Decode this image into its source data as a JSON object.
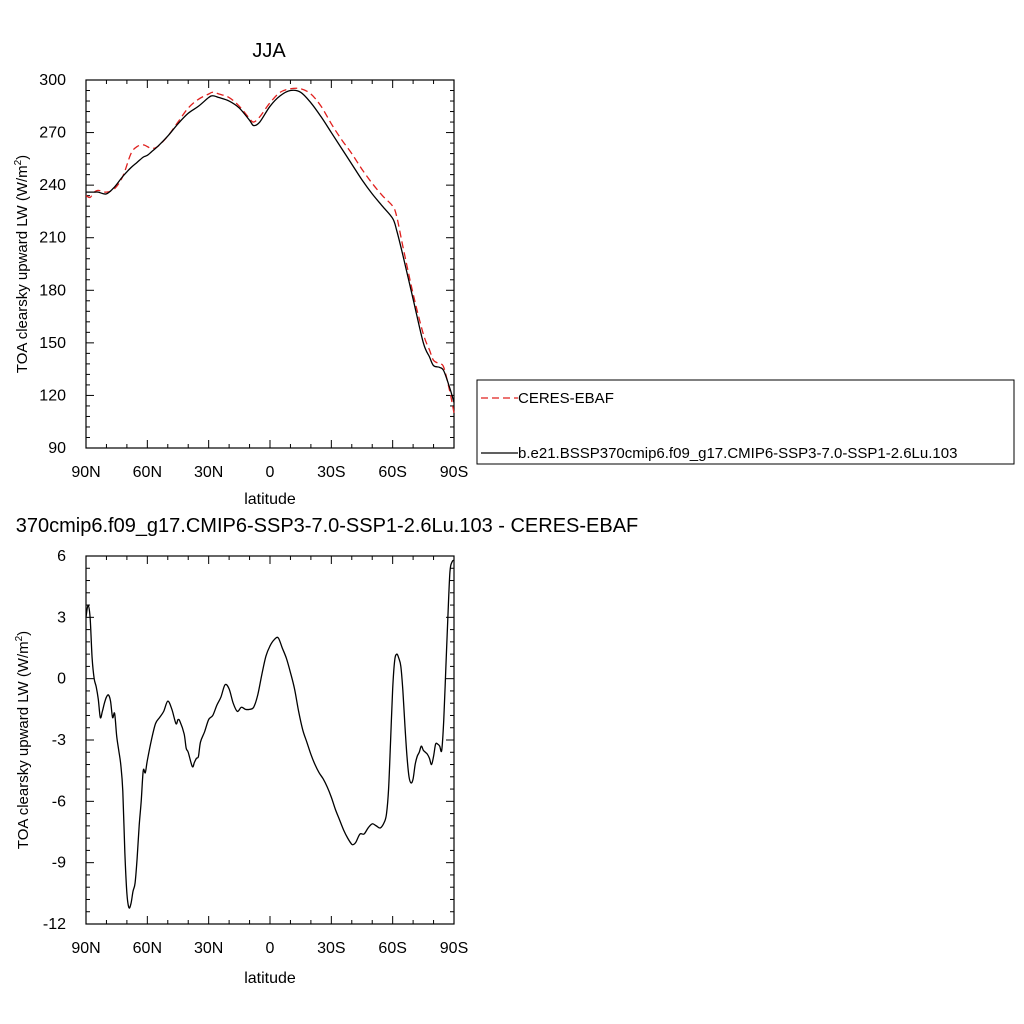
{
  "chart_data": [
    {
      "type": "line",
      "title": "JJA",
      "xlabel": "latitude",
      "ylabel": "TOA clearsky upward LW (W/m",
      "ylabel_sup": "2",
      "ylabel_close": ")",
      "xlim": [
        90,
        -90
      ],
      "ylim": [
        90,
        300
      ],
      "xticks": [
        {
          "v": 90,
          "label": "90N"
        },
        {
          "v": 60,
          "label": "60N"
        },
        {
          "v": 30,
          "label": "30N"
        },
        {
          "v": 0,
          "label": "0"
        },
        {
          "v": -30,
          "label": "30S"
        },
        {
          "v": -60,
          "label": "60S"
        },
        {
          "v": -90,
          "label": "90S"
        }
      ],
      "yticks": [
        90,
        120,
        150,
        180,
        210,
        240,
        270,
        300
      ],
      "legend": {
        "placement": "right"
      },
      "series": [
        {
          "name": "CERES-EBAF",
          "color": "#e0201e",
          "dash": true,
          "x": [
            90,
            88,
            86,
            84,
            80,
            76,
            72,
            68,
            65,
            62,
            60,
            58,
            55,
            50,
            45,
            40,
            35,
            30,
            28,
            25,
            20,
            15,
            10,
            8,
            5,
            0,
            -5,
            -10,
            -15,
            -20,
            -25,
            -30,
            -35,
            -40,
            -45,
            -50,
            -55,
            -60,
            -62,
            -65,
            -70,
            -75,
            -78,
            -80,
            -83,
            -85,
            -88,
            -90
          ],
          "y": [
            234,
            233,
            236,
            237,
            236,
            238,
            245,
            258,
            262,
            263,
            262,
            261,
            262,
            268,
            276,
            284,
            289,
            292,
            293,
            292,
            290,
            285,
            278,
            276,
            279,
            287,
            293,
            295,
            295,
            292,
            285,
            275,
            266,
            258,
            249,
            241,
            234,
            228,
            222,
            205,
            178,
            155,
            146,
            140,
            138,
            136,
            122,
            110
          ]
        },
        {
          "name": "b.e21.BSSP370cmip6.f09_g17.CMIP6-SSP3-7.0-SSP1-2.6Lu.103",
          "color": "#000000",
          "dash": false,
          "x": [
            90,
            88,
            86,
            84,
            80,
            76,
            72,
            68,
            65,
            62,
            60,
            58,
            55,
            50,
            45,
            40,
            35,
            30,
            28,
            25,
            20,
            15,
            10,
            8,
            5,
            0,
            -5,
            -10,
            -15,
            -20,
            -25,
            -30,
            -35,
            -40,
            -45,
            -50,
            -55,
            -60,
            -62,
            -65,
            -70,
            -75,
            -78,
            -80,
            -83,
            -85,
            -88,
            -90
          ],
          "y": [
            236,
            236,
            236,
            236,
            235,
            239,
            245,
            250,
            253,
            256,
            257,
            259,
            262,
            268,
            275,
            281,
            285,
            290,
            291,
            290,
            288,
            284,
            277,
            274,
            276,
            285,
            291,
            294,
            293,
            287,
            279,
            270,
            261,
            252,
            243,
            235,
            228,
            221,
            214,
            200,
            175,
            150,
            142,
            137,
            136,
            134,
            124,
            116
          ]
        }
      ]
    },
    {
      "type": "line",
      "title": "370cmip6.f09_g17.CMIP6-SSP3-7.0-SSP1-2.6Lu.103 - CERES-EBAF",
      "xlabel": "latitude",
      "ylabel": "TOA clearsky upward LW (W/m",
      "ylabel_sup": "2",
      "ylabel_close": ")",
      "xlim": [
        90,
        -90
      ],
      "ylim": [
        -12,
        6
      ],
      "xticks": [
        {
          "v": 90,
          "label": "90N"
        },
        {
          "v": 60,
          "label": "60N"
        },
        {
          "v": 30,
          "label": "30N"
        },
        {
          "v": 0,
          "label": "0"
        },
        {
          "v": -30,
          "label": "30S"
        },
        {
          "v": -60,
          "label": "60S"
        },
        {
          "v": -90,
          "label": "90S"
        }
      ],
      "yticks": [
        -12,
        -9,
        -6,
        -3,
        0,
        3,
        6
      ],
      "series": [
        {
          "name": "",
          "color": "#000000",
          "dash": false,
          "x": [
            90,
            89,
            88,
            87,
            86,
            85,
            84,
            83,
            82,
            81,
            80,
            79,
            78,
            77,
            76,
            75,
            74,
            73,
            72,
            71,
            70,
            69,
            68,
            67,
            66,
            65,
            64,
            63,
            62,
            61,
            60,
            58,
            56,
            54,
            52,
            50,
            48,
            46,
            45,
            44,
            42,
            41,
            40,
            38,
            37,
            36,
            35,
            34,
            32,
            30,
            28,
            26,
            24,
            22,
            20,
            18,
            16,
            14,
            12,
            10,
            8,
            6,
            4,
            2,
            0,
            -2,
            -4,
            -6,
            -8,
            -10,
            -12,
            -14,
            -16,
            -18,
            -20,
            -22,
            -24,
            -26,
            -28,
            -30,
            -32,
            -34,
            -36,
            -38,
            -40,
            -41,
            -42,
            -44,
            -46,
            -48,
            -50,
            -52,
            -54,
            -56,
            -57,
            -58,
            -59,
            -60,
            -61,
            -62,
            -63,
            -64,
            -65,
            -66,
            -67,
            -68,
            -69,
            -70,
            -71,
            -72,
            -73,
            -74,
            -75,
            -76,
            -77,
            -78,
            -79,
            -80,
            -81,
            -82,
            -83,
            -84,
            -85,
            -86,
            -87,
            -88,
            -89,
            -90
          ],
          "y": [
            3.0,
            3.6,
            3.0,
            1.0,
            0.0,
            -0.4,
            -1.0,
            -1.9,
            -1.6,
            -1.2,
            -0.9,
            -0.8,
            -1.1,
            -1.9,
            -1.7,
            -2.8,
            -3.5,
            -4.2,
            -5.5,
            -8.5,
            -10.5,
            -11.2,
            -11.0,
            -10.4,
            -10.0,
            -8.8,
            -7.2,
            -6.0,
            -4.5,
            -4.6,
            -4.0,
            -3.0,
            -2.2,
            -1.9,
            -1.6,
            -1.1,
            -1.5,
            -2.2,
            -2.0,
            -2.1,
            -2.7,
            -3.4,
            -3.6,
            -4.3,
            -4.1,
            -3.9,
            -3.8,
            -3.1,
            -2.6,
            -2.0,
            -1.8,
            -1.3,
            -0.9,
            -0.3,
            -0.5,
            -1.2,
            -1.6,
            -1.4,
            -1.5,
            -1.5,
            -1.4,
            -0.8,
            0.2,
            1.1,
            1.6,
            1.9,
            2.0,
            1.5,
            1.0,
            0.3,
            -0.5,
            -1.6,
            -2.5,
            -3.1,
            -3.7,
            -4.2,
            -4.6,
            -4.9,
            -5.3,
            -5.8,
            -6.4,
            -6.9,
            -7.4,
            -7.8,
            -8.1,
            -8.1,
            -8.0,
            -7.6,
            -7.6,
            -7.3,
            -7.1,
            -7.2,
            -7.3,
            -7.0,
            -6.6,
            -5.4,
            -3.0,
            -0.5,
            0.9,
            1.2,
            1.0,
            0.6,
            -0.6,
            -2.3,
            -3.8,
            -4.8,
            -5.1,
            -4.9,
            -4.2,
            -3.8,
            -3.6,
            -3.3,
            -3.5,
            -3.6,
            -3.7,
            -3.9,
            -4.2,
            -3.8,
            -3.2,
            -3.2,
            -3.3,
            -3.5,
            -2.0,
            0.5,
            3.0,
            5.2,
            5.7,
            5.8
          ]
        }
      ]
    }
  ]
}
